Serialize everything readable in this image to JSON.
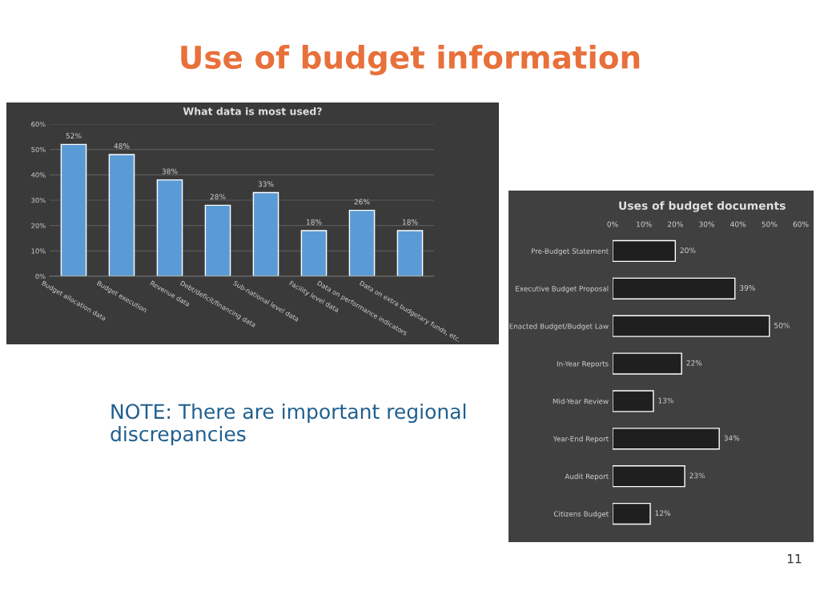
{
  "chart_data": [
    {
      "type": "bar",
      "title": "What data is most used?",
      "categories": [
        "Budget allocation data",
        "Budget execution",
        "Revenue data",
        "Debt/deficit/financing data",
        "Sub-national level data",
        "Facility level data",
        "Data on performance indicators",
        "Data on extra budgetary funds, etc."
      ],
      "values": [
        52,
        48,
        38,
        28,
        33,
        18,
        26,
        18
      ],
      "color": "#5b9bd5",
      "value_labels": [
        "52%",
        "48%",
        "38%",
        "28%",
        "33%",
        "18%",
        "26%",
        "18%"
      ],
      "ylim": [
        0,
        60
      ],
      "yticks": [
        {
          "value": 0,
          "label": "0%"
        },
        {
          "value": 10,
          "label": "10%"
        },
        {
          "value": 20,
          "label": "20%"
        },
        {
          "value": 30,
          "label": "30%"
        },
        {
          "value": 40,
          "label": "40%"
        },
        {
          "value": 50,
          "label": "50%"
        },
        {
          "value": 60,
          "label": "60%"
        }
      ],
      "grid": "y",
      "legend": false,
      "annotations": [
        "Use of budget information",
        "NOTE: There are important regional discrepancies",
        "11"
      ]
    },
    {
      "type": "bar",
      "orientation": "horizontal",
      "title": "Uses of budget documents",
      "categories": [
        "Pre-Budget Statement",
        "Executive Budget Proposal",
        "Enacted Budget/Budget Law",
        "In-Year Reports",
        "Mid-Year Review",
        "Year-End Report",
        "Audit Report",
        "Citizens Budget"
      ],
      "values": [
        20,
        39,
        50,
        22,
        13,
        34,
        23,
        12
      ],
      "color": "#1f1f1f",
      "value_labels": [
        "20%",
        "39%",
        "50%",
        "22%",
        "13%",
        "34%",
        "23%",
        "12%"
      ],
      "xlim": [
        0,
        60
      ],
      "xticks": [
        {
          "value": 0,
          "label": "0%"
        },
        {
          "value": 10,
          "label": "10%"
        },
        {
          "value": 20,
          "label": "20%"
        },
        {
          "value": 30,
          "label": "30%"
        },
        {
          "value": 40,
          "label": "40%"
        },
        {
          "value": 50,
          "label": "50%"
        },
        {
          "value": 60,
          "label": "60%"
        }
      ],
      "grid": false,
      "legend": false
    }
  ]
}
